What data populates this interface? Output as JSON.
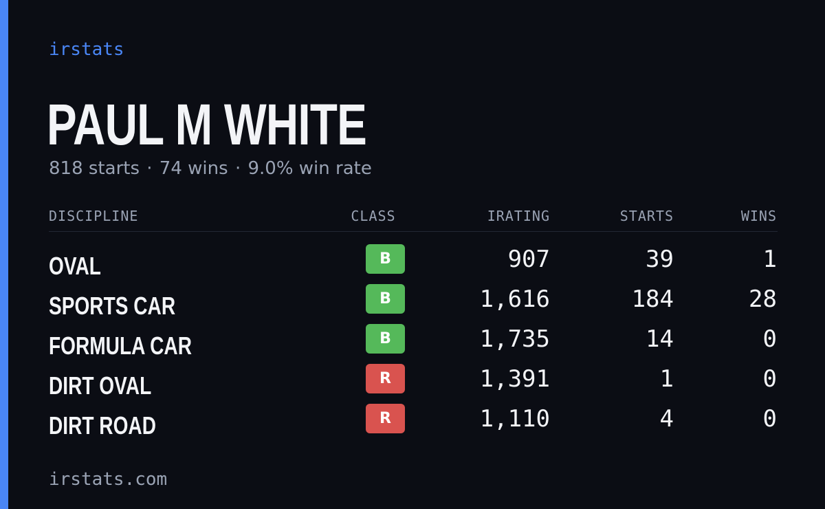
{
  "brand": "irstats",
  "colors": {
    "accent": "#4a86f5",
    "background": "#0b0d14",
    "class_B": "#55b95a",
    "class_R": "#d9534f"
  },
  "driver": {
    "name": "PAUL M WHITE",
    "starts_text": "818 starts",
    "wins_text": "74 wins",
    "win_rate_text": "9.0% win rate",
    "separator": "·"
  },
  "table": {
    "headers": {
      "discipline": "DISCIPLINE",
      "class": "CLASS",
      "irating": "IRATING",
      "starts": "STARTS",
      "wins": "WINS"
    },
    "rows": [
      {
        "discipline": "OVAL",
        "class": "B",
        "irating": "907",
        "starts": "39",
        "wins": "1"
      },
      {
        "discipline": "SPORTS CAR",
        "class": "B",
        "irating": "1,616",
        "starts": "184",
        "wins": "28"
      },
      {
        "discipline": "FORMULA CAR",
        "class": "B",
        "irating": "1,735",
        "starts": "14",
        "wins": "0"
      },
      {
        "discipline": "DIRT OVAL",
        "class": "R",
        "irating": "1,391",
        "starts": "1",
        "wins": "0"
      },
      {
        "discipline": "DIRT ROAD",
        "class": "R",
        "irating": "1,110",
        "starts": "4",
        "wins": "0"
      }
    ]
  },
  "footer": "irstats.com"
}
